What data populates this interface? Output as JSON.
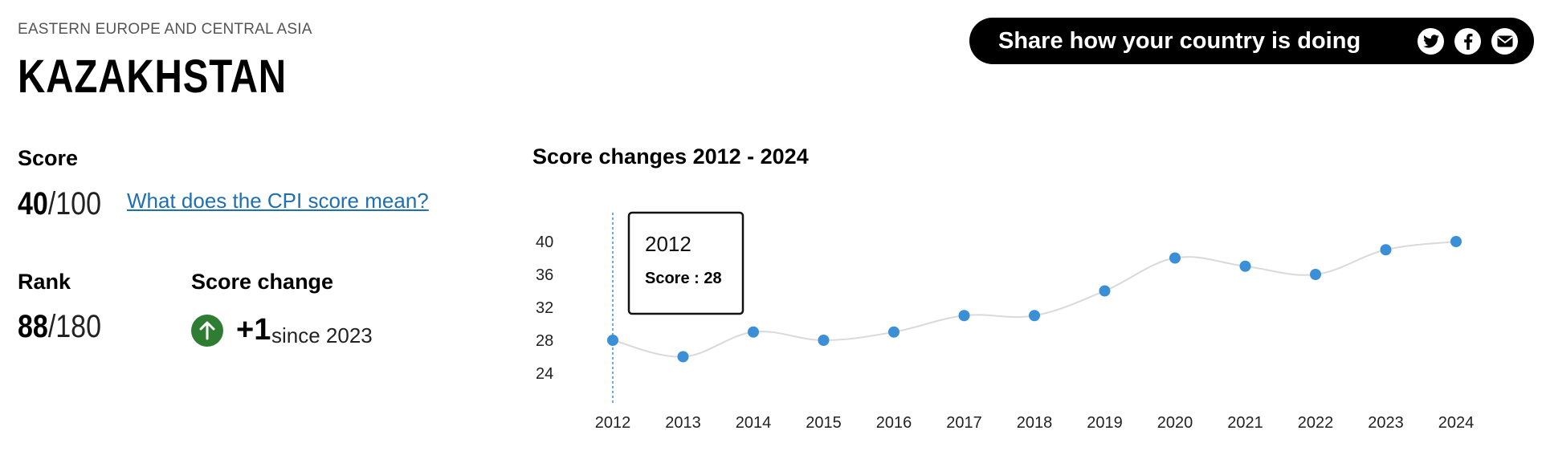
{
  "header": {
    "region": "EASTERN EUROPE AND CENTRAL ASIA",
    "country": "KAZAKHSTAN"
  },
  "share": {
    "label": "Share how your country is doing",
    "icons": [
      "twitter-icon",
      "facebook-icon",
      "email-icon"
    ]
  },
  "score": {
    "label": "Score",
    "value": "40",
    "max": "/100",
    "link": "What does the CPI score mean?"
  },
  "rank": {
    "label": "Rank",
    "value": "88",
    "max": "/180"
  },
  "score_change": {
    "label": "Score change",
    "value": "+1",
    "since": "since 2023",
    "direction_icon": "arrow-up-icon",
    "color": "#2e7d32"
  },
  "colors": {
    "point": "#3a8fd6",
    "line": "#d9d9d9",
    "link": "#1f6fb2"
  },
  "chart_data": {
    "type": "line",
    "title": "Score changes 2012 - 2024",
    "x": [
      "2012",
      "2013",
      "2014",
      "2015",
      "2016",
      "2017",
      "2018",
      "2019",
      "2020",
      "2021",
      "2022",
      "2023",
      "2024"
    ],
    "series": [
      {
        "values": [
          28,
          26,
          29,
          28,
          29,
          31,
          31,
          34,
          38,
          37,
          36,
          39,
          40
        ]
      }
    ],
    "yticks": [
      24,
      28,
      32,
      36,
      40
    ],
    "ylim": [
      24,
      40
    ],
    "grid": false,
    "tooltip": {
      "year": "2012",
      "text": "Score : 28"
    }
  }
}
